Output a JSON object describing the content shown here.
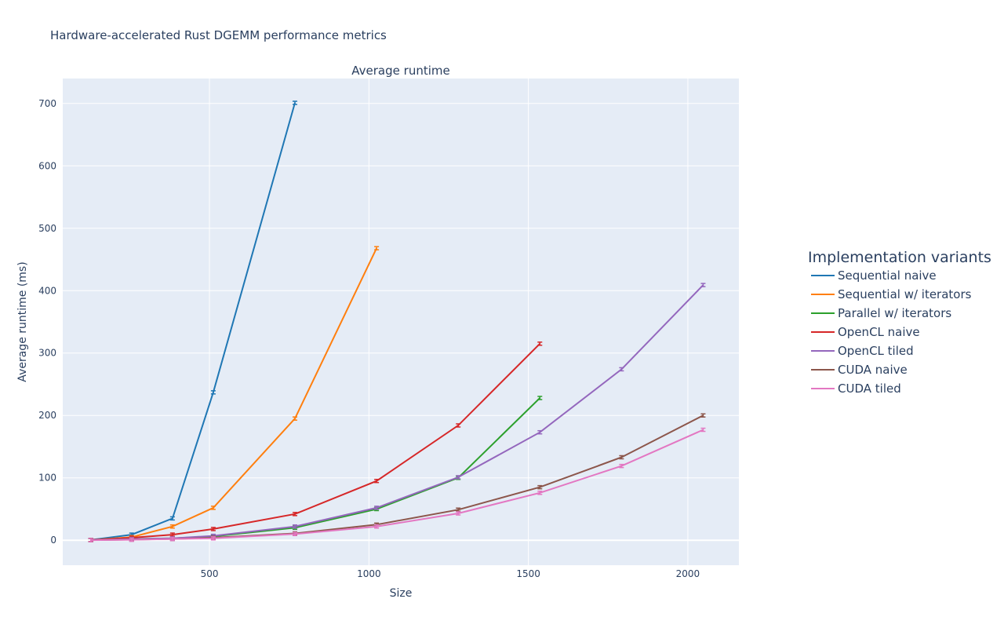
{
  "figure_title": "Hardware-accelerated Rust DGEMM performance metrics",
  "chart_data": {
    "type": "line",
    "title": "Average runtime",
    "xlabel": "Size",
    "ylabel": "Average runtime (ms)",
    "xlim": [
      40,
      2160
    ],
    "ylim": [
      -40,
      740
    ],
    "xticks": [
      500,
      1000,
      1500,
      2000
    ],
    "yticks": [
      0,
      100,
      200,
      300,
      400,
      500,
      600,
      700
    ],
    "grid": true,
    "legend": {
      "title": "Implementation variants",
      "placement": "right"
    },
    "series": [
      {
        "name": "Sequential naive",
        "color": "#1f77b4",
        "x": [
          128,
          256,
          384,
          512,
          768
        ],
        "y": [
          0.5,
          9,
          35,
          237,
          701
        ]
      },
      {
        "name": "Sequential w/ iterators",
        "color": "#ff7f0e",
        "x": [
          128,
          256,
          384,
          512,
          768,
          1024
        ],
        "y": [
          0.3,
          5,
          22,
          52,
          195,
          468
        ]
      },
      {
        "name": "Parallel w/ iterators",
        "color": "#2ca02c",
        "x": [
          128,
          256,
          384,
          512,
          768,
          1024,
          1280,
          1536
        ],
        "y": [
          0.2,
          2,
          3,
          6,
          20,
          50,
          100,
          228
        ]
      },
      {
        "name": "OpenCL naive",
        "color": "#d62728",
        "x": [
          128,
          256,
          384,
          512,
          768,
          1024,
          1280,
          1536
        ],
        "y": [
          0.5,
          4,
          9,
          18,
          42,
          95,
          184,
          315
        ]
      },
      {
        "name": "OpenCL tiled",
        "color": "#9467bd",
        "x": [
          128,
          256,
          384,
          512,
          768,
          1024,
          1280,
          1536,
          1792,
          2048
        ],
        "y": [
          0.2,
          2,
          3,
          7,
          22,
          52,
          101,
          173,
          274,
          409
        ]
      },
      {
        "name": "CUDA naive",
        "color": "#8c564b",
        "x": [
          128,
          256,
          384,
          512,
          768,
          1024,
          1280,
          1536,
          1792,
          2048
        ],
        "y": [
          0.1,
          1,
          2,
          4,
          11,
          25,
          49,
          85,
          133,
          200
        ]
      },
      {
        "name": "CUDA tiled",
        "color": "#e377c2",
        "x": [
          128,
          256,
          384,
          512,
          768,
          1024,
          1280,
          1536,
          1792,
          2048
        ],
        "y": [
          0.1,
          0.8,
          2,
          3,
          10,
          22,
          43,
          76,
          119,
          177
        ]
      }
    ]
  }
}
